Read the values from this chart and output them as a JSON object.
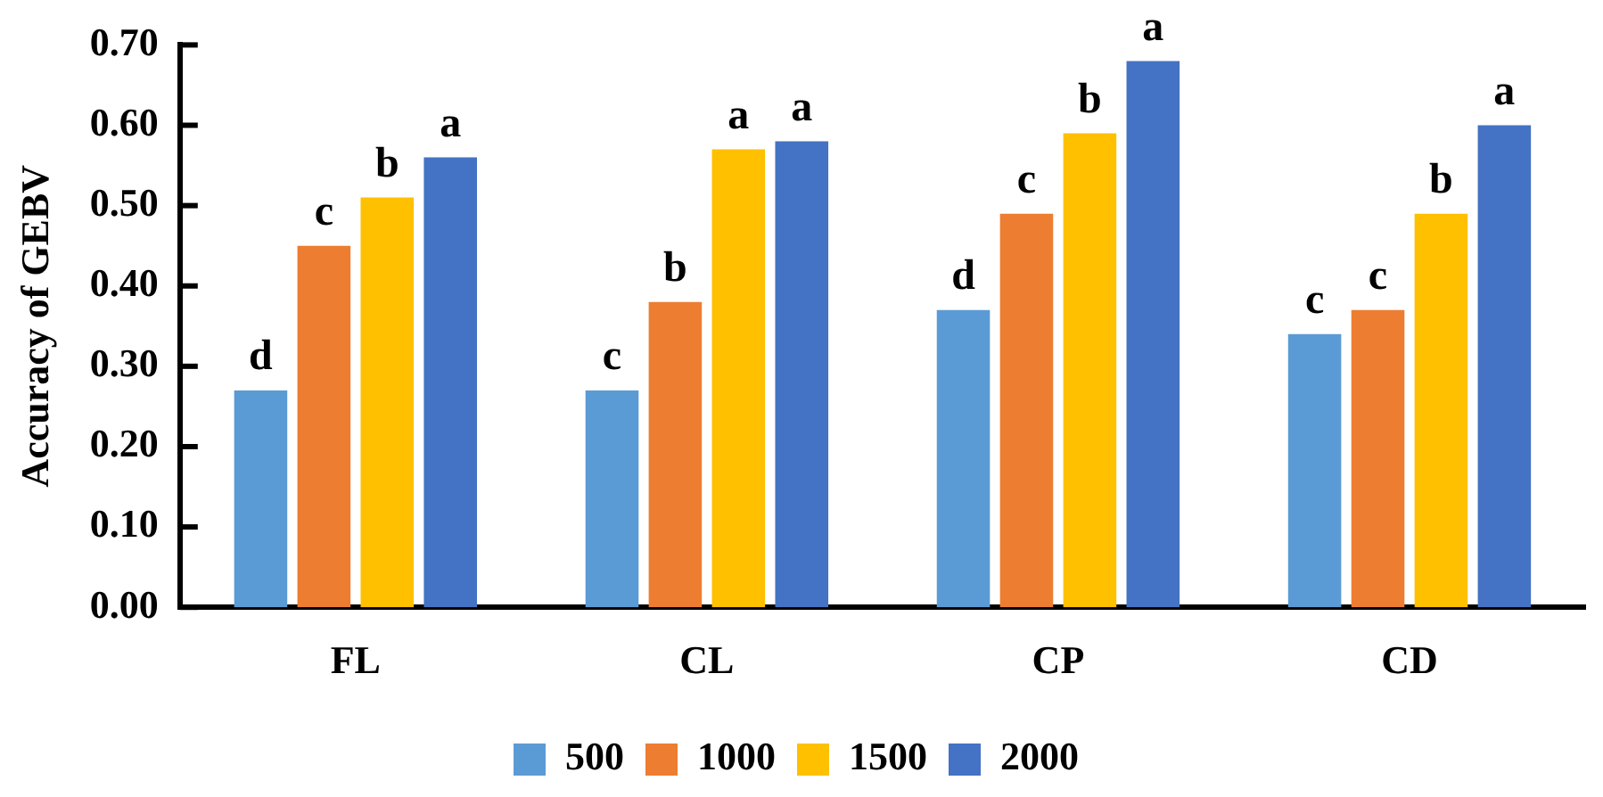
{
  "chart_data": {
    "type": "bar",
    "ylabel": "Accuracy of GEBV",
    "categories": [
      "FL",
      "CL",
      "CP",
      "CD"
    ],
    "series": [
      {
        "name": "500",
        "color": "#5b9bd5",
        "values": [
          0.27,
          0.27,
          0.37,
          0.34
        ],
        "value_labels": [
          "d",
          "c",
          "d",
          "c"
        ]
      },
      {
        "name": "1000",
        "color": "#ed7d31",
        "values": [
          0.45,
          0.38,
          0.49,
          0.37
        ],
        "value_labels": [
          "c",
          "b",
          "c",
          "c"
        ]
      },
      {
        "name": "1500",
        "color": "#ffc000",
        "values": [
          0.51,
          0.57,
          0.59,
          0.49
        ],
        "value_labels": [
          "b",
          "a",
          "b",
          "b"
        ]
      },
      {
        "name": "2000",
        "color": "#4472c4",
        "values": [
          0.56,
          0.58,
          0.68,
          0.6
        ],
        "value_labels": [
          "a",
          "a",
          "a",
          "a"
        ]
      }
    ],
    "ylim": [
      0,
      0.7
    ],
    "yticks": [
      {
        "value": 0,
        "label": "0.00"
      },
      {
        "value": 0.1,
        "label": "0.10"
      },
      {
        "value": 0.2,
        "label": "0.20"
      },
      {
        "value": 0.3,
        "label": "0.30"
      },
      {
        "value": 0.4,
        "label": "0.40"
      },
      {
        "value": 0.5,
        "label": "0.50"
      },
      {
        "value": 0.6,
        "label": "0.60"
      },
      {
        "value": 0.7,
        "label": "0.70"
      }
    ],
    "grid": false,
    "legend": "bottom"
  }
}
